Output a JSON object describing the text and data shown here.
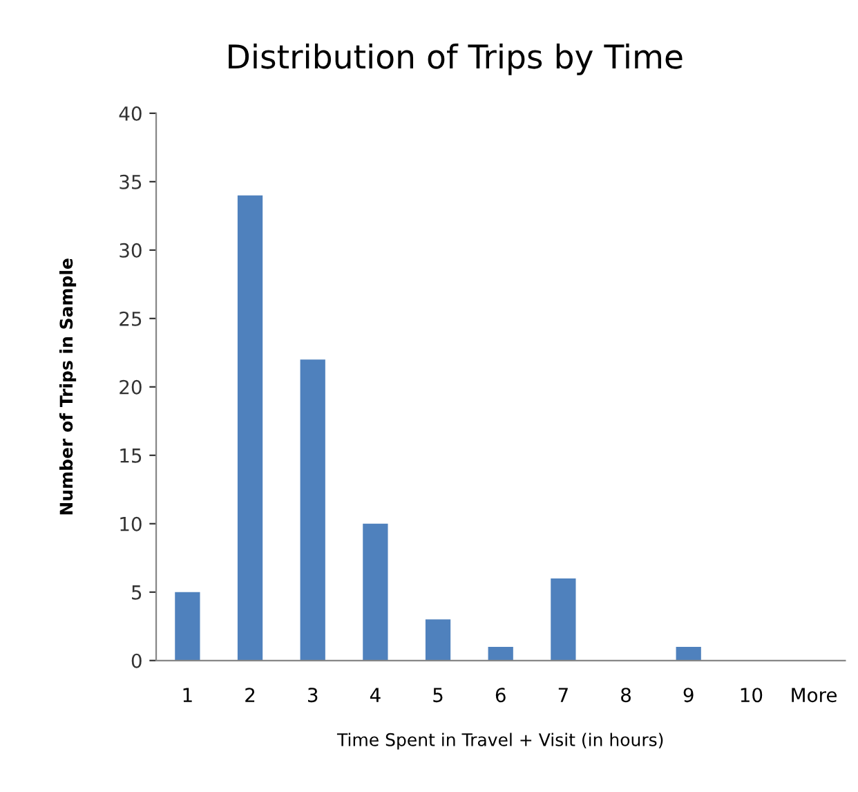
{
  "chart_data": {
    "type": "bar",
    "title": "Distribution of Trips by Time",
    "xlabel": "Time Spent in Travel + Visit (in hours)",
    "ylabel": "Number of Trips in Sample",
    "categories": [
      "1",
      "2",
      "3",
      "4",
      "5",
      "6",
      "7",
      "8",
      "9",
      "10",
      "More"
    ],
    "values": [
      5,
      34,
      22,
      10,
      3,
      1,
      6,
      0,
      1,
      0,
      0
    ],
    "color": "#4f81bd",
    "ylim": [
      0,
      40
    ],
    "yticks": [
      0,
      5,
      10,
      15,
      20,
      25,
      30,
      35,
      40
    ],
    "grid": false,
    "legend": false
  }
}
